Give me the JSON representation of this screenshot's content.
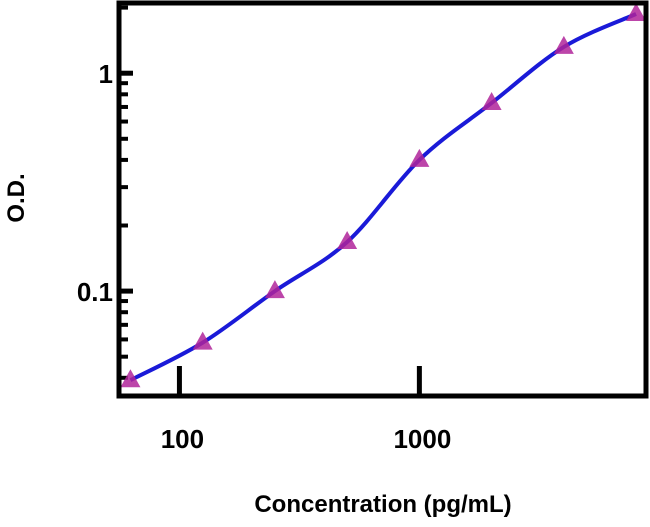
{
  "chart_data": {
    "type": "line",
    "title": "",
    "xlabel": "Concentration (pg/mL)",
    "ylabel": "O.D.",
    "x_scale": "log",
    "y_scale": "log",
    "xlim": [
      56,
      8800
    ],
    "ylim": [
      0.033,
      2.1
    ],
    "x_ticks": [
      100,
      1000
    ],
    "x_tick_labels": [
      "100",
      "1000"
    ],
    "y_ticks": [
      0.1,
      1
    ],
    "y_tick_labels": [
      "0.1",
      "1"
    ],
    "grid": false,
    "series": [
      {
        "x": [
          62.5,
          125,
          250,
          500,
          1000,
          2000,
          4000,
          8000
        ],
        "y": [
          0.039,
          0.058,
          0.1,
          0.168,
          0.4,
          0.73,
          1.32,
          1.87
        ],
        "marker": "triangle",
        "marker_color": "#b0249a",
        "line_color": "#1a1ad8"
      }
    ]
  }
}
